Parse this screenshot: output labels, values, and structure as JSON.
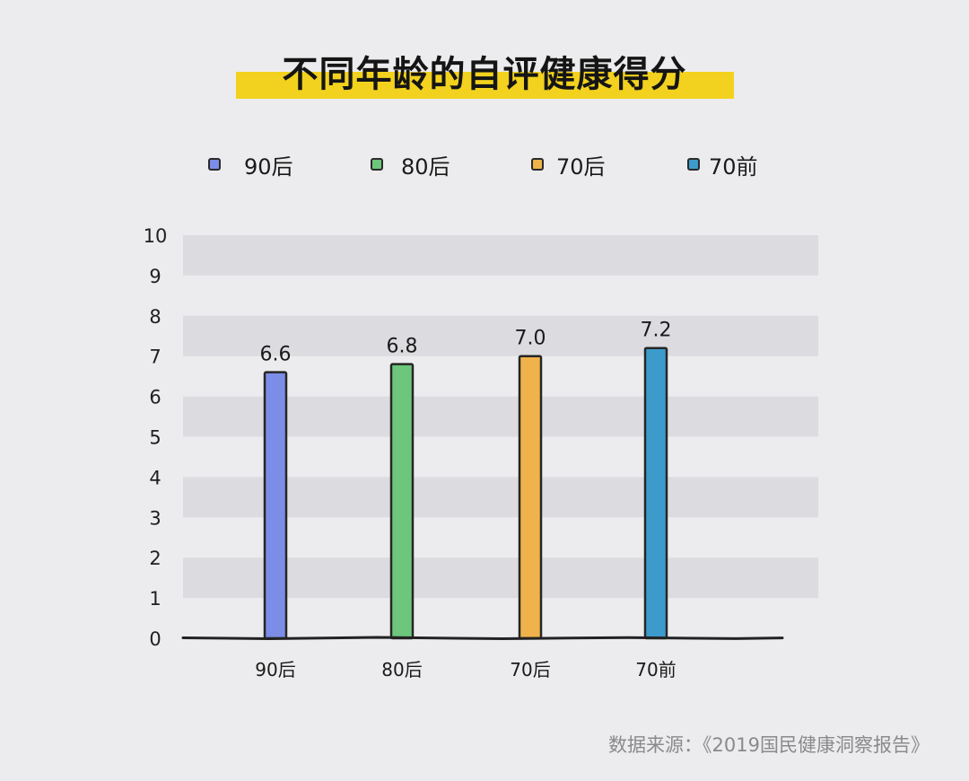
{
  "title": "不同年龄的自评健康得分",
  "source": "数据来源：《2019国民健康洞察报告》",
  "legend": [
    {
      "label": "90后",
      "color": "#7b8de6"
    },
    {
      "label": "80后",
      "color": "#6cc77c"
    },
    {
      "label": "70后",
      "color": "#f0b24a"
    },
    {
      "label": "70前",
      "color": "#3d9bcc"
    }
  ],
  "chart_data": {
    "type": "bar",
    "title": "不同年龄的自评健康得分",
    "categories": [
      "90后",
      "80后",
      "70后",
      "70前"
    ],
    "values": [
      6.6,
      6.8,
      7.0,
      7.2
    ],
    "value_labels": [
      "6.6",
      "6.8",
      "7.0",
      "7.2"
    ],
    "colors": [
      "#7b8de6",
      "#6cc77c",
      "#f0b24a",
      "#3d9bcc"
    ],
    "xlabel": "",
    "ylabel": "",
    "ylim": [
      0,
      10
    ],
    "yticks": [
      0,
      1,
      2,
      3,
      4,
      5,
      6,
      7,
      8,
      9,
      10
    ],
    "grid": "alternating horizontal bands",
    "legend_position": "top"
  }
}
